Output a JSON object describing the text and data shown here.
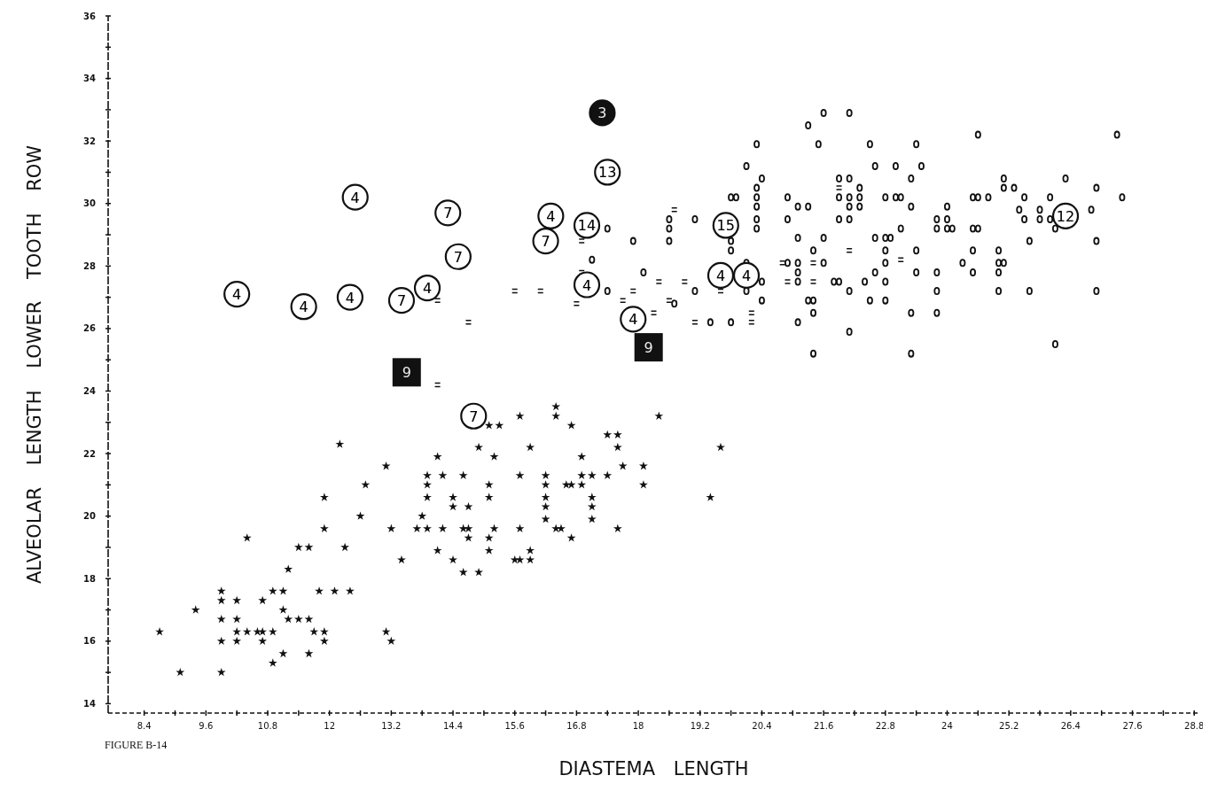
{
  "chart_data": {
    "type": "scatter",
    "xlabel": "DIASTEMA LENGTH",
    "ylabel": "ALVEOLAR LENGTH LOWER TOOTH ROW",
    "annotations": [
      "FIGURE B-14",
      {
        "text": "4",
        "x": 12.5,
        "y": 30.2
      },
      {
        "text": "7",
        "x": 14.3,
        "y": 29.7
      },
      {
        "text": "7",
        "x": 14.5,
        "y": 28.3
      },
      {
        "text": "4",
        "x": 11.5,
        "y": 26.7
      },
      {
        "text": "13",
        "x": 17.4,
        "y": 31.0
      },
      {
        "text": "14",
        "x": 17.0,
        "y": 29.3
      },
      {
        "text": "15",
        "x": 19.7,
        "y": 29.3
      },
      {
        "text": "12",
        "x": 26.3,
        "y": 29.6
      },
      {
        "text": "4",
        "x": 16.3,
        "y": 29.6
      },
      {
        "text": "4",
        "x": 19.6,
        "y": 27.7
      },
      {
        "text": "4",
        "x": 20.1,
        "y": 27.7
      },
      {
        "text": "4",
        "x": 10.2,
        "y": 27.1
      },
      {
        "text": "4",
        "x": 12.4,
        "y": 27.0
      },
      {
        "text": "7",
        "x": 13.4,
        "y": 26.9
      },
      {
        "text": "4",
        "x": 13.9,
        "y": 27.3
      },
      {
        "text": "7",
        "x": 16.2,
        "y": 28.8
      },
      {
        "text": "4",
        "x": 17.0,
        "y": 27.4
      },
      {
        "text": "4",
        "x": 17.9,
        "y": 26.3
      },
      {
        "text": "7",
        "x": 14.8,
        "y": 23.2
      },
      {
        "text": "3",
        "x": 17.3,
        "y": 32.9
      },
      {
        "text": "9",
        "x": 13.5,
        "y": 24.6
      },
      {
        "text": "9",
        "x": 18.2,
        "y": 25.4
      }
    ],
    "xlim": [
      7.7,
      28.9
    ],
    "ylim": [
      13.7,
      36
    ],
    "xticks": [
      8.4,
      {
        "value": 9.0,
        "label": null
      },
      9.6,
      {
        "value": 10.2,
        "label": null
      },
      10.8,
      {
        "value": 11.4,
        "label": null
      },
      12.0,
      {
        "value": 12.6,
        "label": null
      },
      13.2,
      {
        "value": 13.8,
        "label": null
      },
      14.4,
      {
        "value": 15.0,
        "label": null
      },
      15.6,
      {
        "value": 16.2,
        "label": null
      },
      16.8,
      {
        "value": 17.4,
        "label": null
      },
      18.0,
      {
        "value": 18.6,
        "label": null
      },
      19.2,
      {
        "value": 19.8,
        "label": null
      },
      20.4,
      {
        "value": 21.0,
        "label": null
      },
      21.6,
      {
        "value": 22.2,
        "label": null
      },
      22.8,
      {
        "value": 23.4,
        "label": null
      },
      24.0,
      {
        "value": 24.6,
        "label": null
      },
      25.2,
      {
        "value": 25.8,
        "label": null
      },
      26.4,
      {
        "value": 27.0,
        "label": null
      },
      27.6,
      {
        "value": 28.2,
        "label": null
      },
      28.8
    ],
    "yticks": [
      14,
      {
        "value": 15,
        "label": null
      },
      16,
      {
        "value": 17,
        "label": null
      },
      18,
      {
        "value": 19,
        "label": null
      },
      20,
      {
        "value": 21,
        "label": null
      },
      22,
      {
        "value": 23,
        "label": null
      },
      24,
      {
        "value": 25,
        "label": null
      },
      26,
      {
        "value": 27,
        "label": null
      },
      28,
      {
        "value": 29,
        "label": null
      },
      30,
      {
        "value": 31,
        "label": null
      },
      32,
      {
        "value": 33,
        "label": null
      },
      34,
      {
        "value": 35,
        "label": null
      },
      36
    ],
    "grid": false,
    "series": [
      {
        "color": "#111111",
        "marker": "star",
        "x": [
          12.2,
          13.1,
          12.7,
          11.9,
          12.6,
          13.8,
          11.9,
          13.2,
          13.7,
          10.4,
          11.4,
          11.6,
          12.3,
          13.4,
          11.2,
          9.9,
          10.9,
          11.1,
          11.8,
          12.1,
          12.4,
          9.9,
          10.2,
          10.7,
          9.4,
          9.9,
          10.2,
          11.1,
          11.2,
          11.4,
          11.6,
          8.7,
          10.2,
          10.4,
          10.6,
          10.7,
          10.9,
          11.7,
          11.9,
          13.1,
          9.9,
          10.2,
          10.7,
          11.9,
          13.2,
          11.1,
          11.6,
          10.9,
          9.1,
          9.9,
          16.4,
          16.4,
          15.7,
          18.4,
          15.1,
          15.3,
          16.7,
          17.4,
          17.6,
          14.9,
          15.9,
          17.6,
          19.6,
          14.1,
          15.2,
          16.9,
          17.7,
          18.1,
          13.9,
          14.2,
          14.6,
          15.7,
          16.2,
          16.9,
          17.1,
          17.4,
          13.9,
          15.1,
          16.2,
          16.6,
          16.7,
          16.9,
          18.1,
          13.9,
          14.4,
          15.1,
          16.2,
          17.1,
          19.4,
          14.4,
          14.7,
          16.2,
          17.1,
          16.2,
          17.1,
          13.9,
          14.2,
          14.6,
          14.7,
          15.2,
          15.7,
          16.4,
          16.5,
          17.6,
          14.7,
          15.1,
          16.7,
          14.1,
          15.1,
          15.9,
          14.4,
          15.6,
          15.7,
          15.9,
          14.6,
          14.9
        ],
        "values": [
          22.3,
          21.6,
          21.0,
          20.6,
          20.0,
          20.0,
          19.6,
          19.6,
          19.6,
          19.3,
          19.0,
          19.0,
          19.0,
          18.6,
          18.3,
          17.6,
          17.6,
          17.6,
          17.6,
          17.6,
          17.6,
          17.3,
          17.3,
          17.3,
          17.0,
          16.7,
          16.7,
          17.0,
          16.7,
          16.7,
          16.7,
          16.3,
          16.3,
          16.3,
          16.3,
          16.3,
          16.3,
          16.3,
          16.3,
          16.3,
          16.0,
          16.0,
          16.0,
          16.0,
          16.0,
          15.6,
          15.6,
          15.3,
          15.0,
          15.0,
          23.5,
          23.2,
          23.2,
          23.2,
          22.9,
          22.9,
          22.9,
          22.6,
          22.6,
          22.2,
          22.2,
          22.2,
          22.2,
          21.9,
          21.9,
          21.9,
          21.6,
          21.6,
          21.3,
          21.3,
          21.3,
          21.3,
          21.3,
          21.3,
          21.3,
          21.3,
          21.0,
          21.0,
          21.0,
          21.0,
          21.0,
          21.0,
          21.0,
          20.6,
          20.6,
          20.6,
          20.6,
          20.6,
          20.6,
          20.3,
          20.3,
          20.3,
          20.3,
          19.9,
          19.9,
          19.6,
          19.6,
          19.6,
          19.6,
          19.6,
          19.6,
          19.6,
          19.6,
          19.6,
          19.3,
          19.3,
          19.3,
          18.9,
          18.9,
          18.9,
          18.6,
          18.6,
          18.6,
          18.6,
          18.2,
          18.2
        ]
      },
      {
        "color": "#111111",
        "marker": "circle",
        "x": [
          21.6,
          22.1,
          21.3,
          24.6,
          20.3,
          21.5,
          22.5,
          23.4,
          20.1,
          22.6,
          23.0,
          23.5,
          20.4,
          21.9,
          22.1,
          23.3,
          20.3,
          22.3,
          20.3,
          20.9,
          21.9,
          22.1,
          22.3,
          22.8,
          23.0,
          23.1,
          24.5,
          24.6,
          24.8,
          20.3,
          21.1,
          21.3,
          22.1,
          22.3,
          23.3,
          24.0,
          20.3,
          20.9,
          21.9,
          22.1,
          23.8,
          24.0,
          20.3,
          23.1,
          23.8,
          24.0,
          24.1,
          24.5,
          24.6,
          21.1,
          21.6,
          22.6,
          22.8,
          22.9,
          21.4,
          22.8,
          23.4,
          24.5,
          25.0,
          20.1,
          20.9,
          21.1,
          21.6,
          22.8,
          24.3,
          25.0,
          25.1,
          21.1,
          22.6,
          23.4,
          23.8,
          24.5,
          25.0,
          20.4,
          21.1,
          21.8,
          21.9,
          22.4,
          22.8,
          20.1,
          22.1,
          23.8,
          25.0,
          20.4,
          21.3,
          21.4,
          22.5,
          22.8,
          21.4,
          23.3,
          23.8,
          21.1,
          22.1,
          21.4,
          23.3,
          27.3,
          25.1,
          26.3,
          25.1,
          25.3,
          26.9,
          25.5,
          26.0,
          27.4,
          25.4,
          25.8,
          26.8,
          25.5,
          25.8,
          26.0,
          26.1,
          25.6,
          26.9,
          25.6,
          26.9,
          26.1,
          19.8,
          19.9,
          18.6,
          19.1,
          18.6,
          17.4,
          17.9,
          18.6,
          19.8,
          19.8,
          17.1,
          18.1,
          17.4,
          19.1,
          18.7,
          19.4,
          19.8
        ],
        "values": [
          32.9,
          32.9,
          32.5,
          32.2,
          31.9,
          31.9,
          31.9,
          31.9,
          31.2,
          31.2,
          31.2,
          31.2,
          30.8,
          30.8,
          30.8,
          30.8,
          30.5,
          30.5,
          30.2,
          30.2,
          30.2,
          30.2,
          30.2,
          30.2,
          30.2,
          30.2,
          30.2,
          30.2,
          30.2,
          29.9,
          29.9,
          29.9,
          29.9,
          29.9,
          29.9,
          29.9,
          29.5,
          29.5,
          29.5,
          29.5,
          29.5,
          29.5,
          29.2,
          29.2,
          29.2,
          29.2,
          29.2,
          29.2,
          29.2,
          28.9,
          28.9,
          28.9,
          28.9,
          28.9,
          28.5,
          28.5,
          28.5,
          28.5,
          28.5,
          28.1,
          28.1,
          28.1,
          28.1,
          28.1,
          28.1,
          28.1,
          28.1,
          27.8,
          27.8,
          27.8,
          27.8,
          27.8,
          27.8,
          27.5,
          27.5,
          27.5,
          27.5,
          27.5,
          27.5,
          27.2,
          27.2,
          27.2,
          27.2,
          26.9,
          26.9,
          26.9,
          26.9,
          26.9,
          26.5,
          26.5,
          26.5,
          26.2,
          25.9,
          25.2,
          25.2,
          32.2,
          30.8,
          30.8,
          30.5,
          30.5,
          30.5,
          30.2,
          30.2,
          30.2,
          29.8,
          29.8,
          29.8,
          29.5,
          29.5,
          29.5,
          29.2,
          28.8,
          28.8,
          27.2,
          27.2,
          25.5,
          30.2,
          30.2,
          29.5,
          29.5,
          29.2,
          29.2,
          28.8,
          28.8,
          28.8,
          28.5,
          28.2,
          27.8,
          27.2,
          27.2,
          26.8,
          26.2,
          26.2
        ]
      },
      {
        "color": "#111111",
        "marker": "square",
        "x": [
          21.9,
          22.1,
          20.8,
          21.4,
          20.9,
          21.4,
          23.1,
          20.2,
          20.2,
          18.7,
          16.9,
          16.9,
          15.6,
          16.1,
          17.9,
          18.4,
          18.9,
          17.7,
          18.6,
          18.3,
          19.1,
          19.6,
          16.8,
          14.1,
          14.7,
          14.1
        ],
        "values": [
          30.5,
          28.5,
          28.1,
          28.1,
          27.5,
          27.5,
          28.2,
          26.5,
          26.2,
          29.8,
          28.8,
          27.8,
          27.2,
          27.2,
          27.2,
          27.5,
          27.5,
          26.9,
          26.9,
          26.5,
          26.2,
          27.2,
          26.8,
          26.9,
          26.2,
          24.2
        ]
      },
      {
        "color": "#ffffff",
        "marker": "circle",
        "x": [
          12.5,
          14.3,
          14.5,
          11.5,
          17.4,
          17.0,
          19.7,
          26.3,
          16.3,
          19.6,
          20.1,
          10.2,
          12.4,
          13.4,
          13.9,
          16.2,
          17.0,
          17.9,
          14.8
        ],
        "values": [
          30.2,
          29.7,
          28.3,
          26.7,
          31.0,
          29.3,
          29.3,
          29.6,
          29.6,
          27.7,
          27.7,
          27.1,
          27.0,
          26.9,
          27.3,
          28.8,
          27.4,
          26.3,
          23.2
        ]
      },
      {
        "color": "#111111",
        "marker": "circle",
        "x": [
          17.3
        ],
        "values": [
          32.9
        ]
      },
      {
        "color": "#111111",
        "marker": "square",
        "x": [
          13.5,
          18.2
        ],
        "values": [
          24.6,
          25.4
        ]
      }
    ]
  }
}
